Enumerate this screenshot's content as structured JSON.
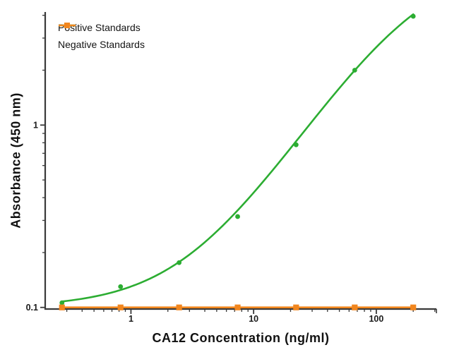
{
  "styles": {
    "background": "#ffffff",
    "axis_color": "#3a3a3a",
    "tick_label_color": "#1a1a1a",
    "text_color": "#111111",
    "positive_color": "#2cad32",
    "negative_color": "#f1861e"
  },
  "legend": {
    "items": [
      {
        "label": "Positive Standards",
        "color": "#2cad32",
        "marker": "circle"
      },
      {
        "label": "Negative Standards",
        "color": "#f1861e",
        "marker": "square"
      }
    ]
  },
  "chart_data": {
    "type": "line",
    "title": "",
    "xlabel": "CA12 Concentration (ng/ml)",
    "ylabel": "Absorbance (450 nm)",
    "x_scale": "log10",
    "y_scale": "log10",
    "xlim": [
      0.2,
      309
    ],
    "ylim": [
      0.098,
      4.17
    ],
    "grid": false,
    "legend_position": "top-left-inside",
    "axes": {
      "x_major_ticks": [
        1,
        10,
        100
      ],
      "x_major_tick_labels": [
        "1",
        "10",
        "100"
      ],
      "x_minor_ticks": [
        0.3,
        0.4,
        0.5,
        0.6,
        0.7,
        0.8,
        0.9,
        2,
        3,
        4,
        5,
        6,
        7,
        8,
        9,
        20,
        30,
        40,
        50,
        60,
        70,
        80,
        90,
        200,
        300
      ],
      "y_major_ticks": [
        0.1,
        1
      ],
      "y_major_tick_labels": [
        "0.1",
        "1"
      ],
      "y_minor_ticks": [
        0.2,
        0.3,
        0.4,
        0.5,
        0.6,
        0.7,
        0.8,
        0.9,
        2,
        3,
        4
      ]
    },
    "series": [
      {
        "name": "Positive Standards",
        "color": "#2cad32",
        "marker": "circle",
        "x": [
          0.274,
          0.823,
          2.47,
          7.41,
          22.2,
          66.7,
          200
        ],
        "y": [
          0.106,
          0.13,
          0.176,
          0.315,
          0.78,
          2.0,
          3.95
        ],
        "fit_curve": {
          "model": "4PL",
          "bottom": 0.1,
          "top": 8.0,
          "ec50": 200,
          "hill": 1.05,
          "x_range": [
            0.274,
            200
          ]
        }
      },
      {
        "name": "Negative Standards",
        "color": "#f1861e",
        "marker": "square",
        "x": [
          0.274,
          0.823,
          2.47,
          7.41,
          22.2,
          66.7,
          200
        ],
        "y": [
          0.1,
          0.1,
          0.1,
          0.1,
          0.1,
          0.1,
          0.1
        ],
        "fit_curve": {
          "model": "flat",
          "value": 0.1,
          "x_range": [
            0.274,
            200
          ]
        }
      }
    ]
  }
}
